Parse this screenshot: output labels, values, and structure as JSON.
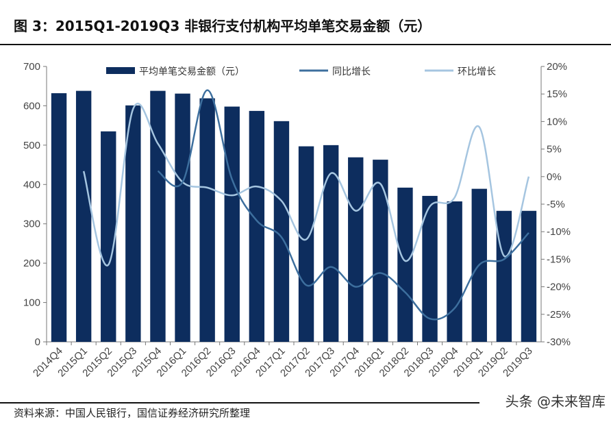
{
  "title": "图 3：2015Q1-2019Q3 非银行支付机构平均单笔交易金额（元）",
  "source": "资料来源：中国人民银行，国信证券经济研究所整理",
  "watermark": "头条 @未来智库",
  "chart_data": {
    "type": "bar",
    "categories": [
      "2014Q4",
      "2015Q1",
      "2015Q2",
      "2015Q3",
      "2015Q4",
      "2016Q1",
      "2016Q2",
      "2016Q3",
      "2016Q4",
      "2017Q1",
      "2017Q2",
      "2017Q3",
      "2017Q4",
      "2018Q1",
      "2018Q2",
      "2018Q3",
      "2018Q4",
      "2019Q1",
      "2019Q2",
      "2019Q3"
    ],
    "series": [
      {
        "name": "平均单笔交易金额（元）",
        "type": "bar",
        "axis": "left",
        "color": "#0d2d5e",
        "values": [
          632,
          638,
          535,
          601,
          638,
          631,
          619,
          598,
          587,
          561,
          497,
          500,
          469,
          463,
          392,
          371,
          357,
          389,
          333,
          333
        ]
      },
      {
        "name": "同比增长",
        "type": "line",
        "axis": "right",
        "color": "#3d6f9e",
        "values": [
          null,
          null,
          null,
          null,
          1.0,
          -1.0,
          15.7,
          -0.5,
          -8.0,
          -11.0,
          -19.7,
          -16.4,
          -20.0,
          -17.5,
          -21.0,
          -25.8,
          -23.9,
          -16.0,
          -15.0,
          -10.2
        ]
      },
      {
        "name": "环比增长",
        "type": "line",
        "axis": "right",
        "color": "#a5c5e0",
        "values": [
          null,
          1.0,
          -16.0,
          12.3,
          6.0,
          -1.0,
          -2.0,
          -3.4,
          -1.8,
          -4.4,
          -11.4,
          0.6,
          -6.2,
          -1.3,
          -15.3,
          -5.4,
          -3.8,
          9.0,
          -14.4,
          0.0
        ]
      }
    ],
    "ylim_left": [
      0,
      700
    ],
    "yticks_left": [
      "0",
      "100",
      "200",
      "300",
      "400",
      "500",
      "600",
      "700"
    ],
    "ylim_right": [
      -30,
      20
    ],
    "yticks_right": [
      "-30%",
      "-25%",
      "-20%",
      "-15%",
      "-10%",
      "-5%",
      "0%",
      "5%",
      "10%",
      "15%",
      "20%"
    ],
    "legend": "top",
    "grid": false
  }
}
